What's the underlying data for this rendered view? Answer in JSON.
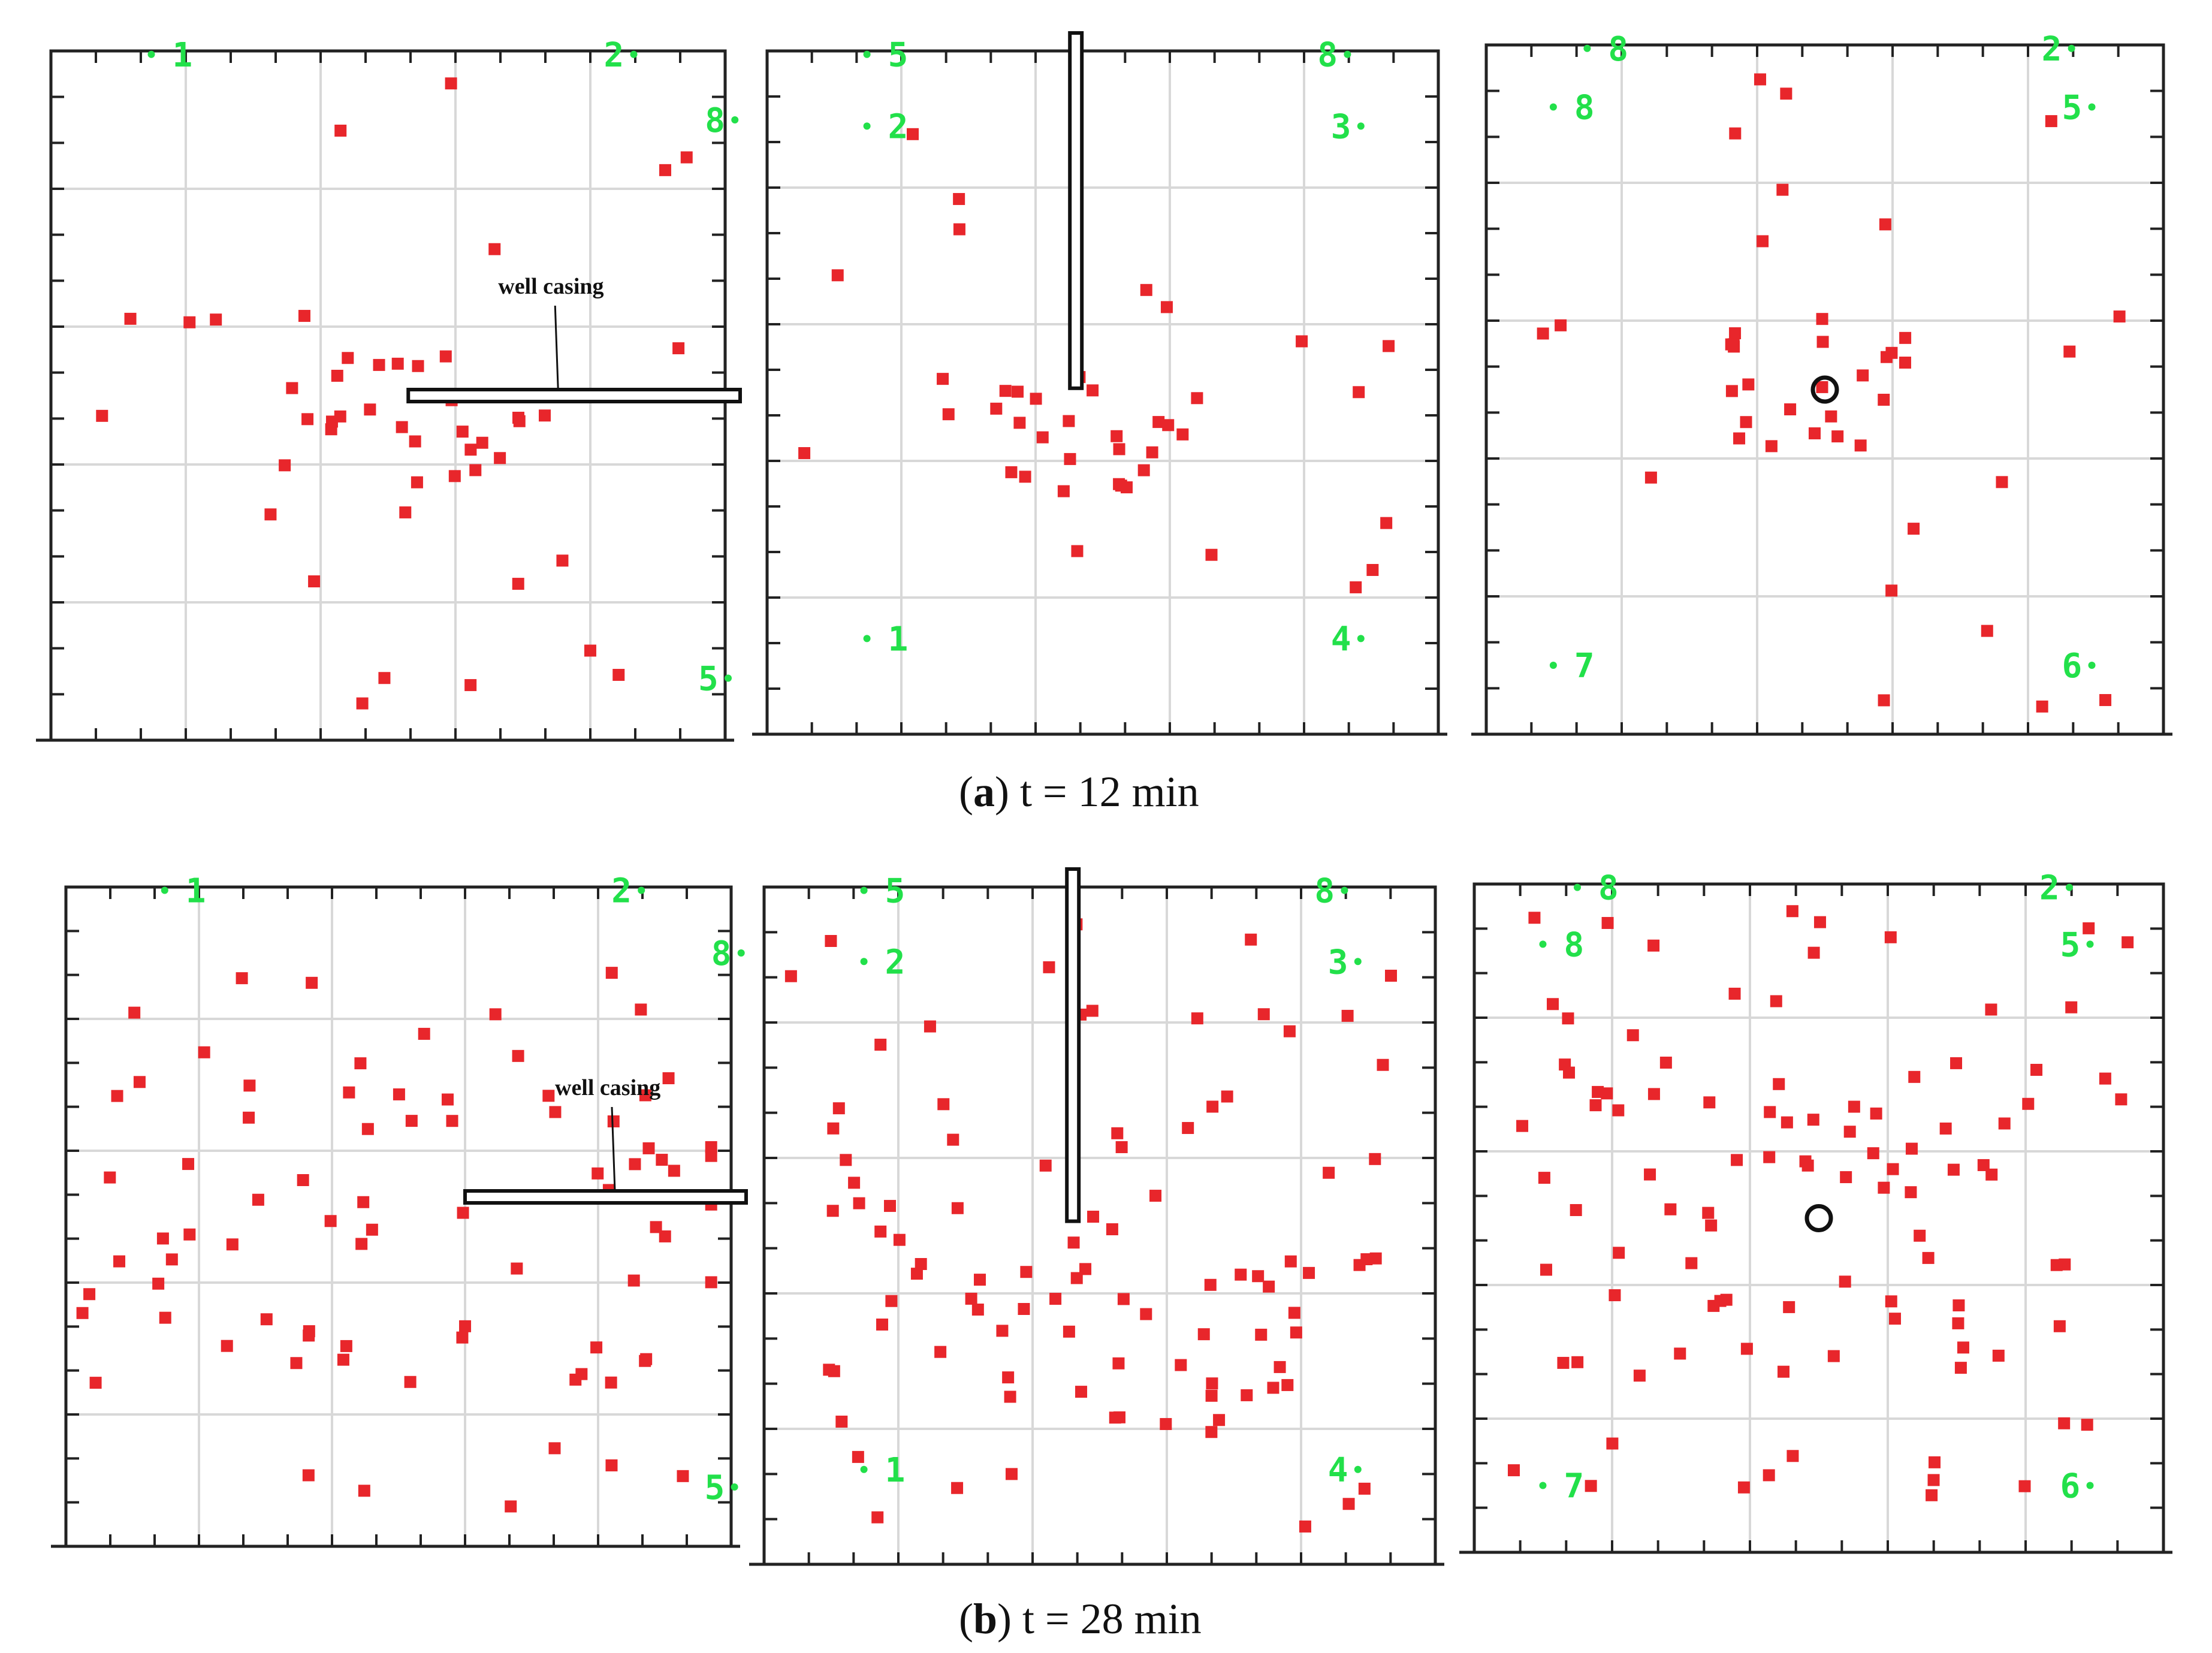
{
  "figure": {
    "captions": {
      "a": {
        "letter": "a",
        "text": "t = 12 min"
      },
      "b": {
        "letter": "b",
        "text": "t = 28 min"
      }
    },
    "well_casing_label": "well casing",
    "colors": {
      "frame": "#222222",
      "grid": "#d8d8d8",
      "seismic_event": "#e8262b",
      "geophone": "#22e04a",
      "casing": "#111111"
    },
    "panels": [
      {
        "id": "a1",
        "view": "front",
        "casing": "horizontal",
        "labels": [
          "1",
          "2",
          "8",
          "5"
        ],
        "event_count": 48
      },
      {
        "id": "a2",
        "view": "side",
        "casing": "vertical",
        "labels": [
          "5",
          "8",
          "2",
          "3",
          "1",
          "4"
        ],
        "event_count": 42
      },
      {
        "id": "a3",
        "view": "plan",
        "casing": "point",
        "labels": [
          "8",
          "2",
          "8",
          "5",
          "7",
          "6"
        ],
        "event_count": 42
      },
      {
        "id": "b1",
        "view": "front",
        "casing": "horizontal",
        "labels": [
          "1",
          "2",
          "8",
          "5"
        ],
        "event_count": 80
      },
      {
        "id": "b2",
        "view": "side",
        "casing": "vertical",
        "labels": [
          "5",
          "8",
          "2",
          "3",
          "1",
          "4"
        ],
        "event_count": 95
      },
      {
        "id": "b3",
        "view": "plan",
        "casing": "point",
        "labels": [
          "8",
          "2",
          "8",
          "5",
          "7",
          "6"
        ],
        "event_count": 100
      }
    ]
  }
}
